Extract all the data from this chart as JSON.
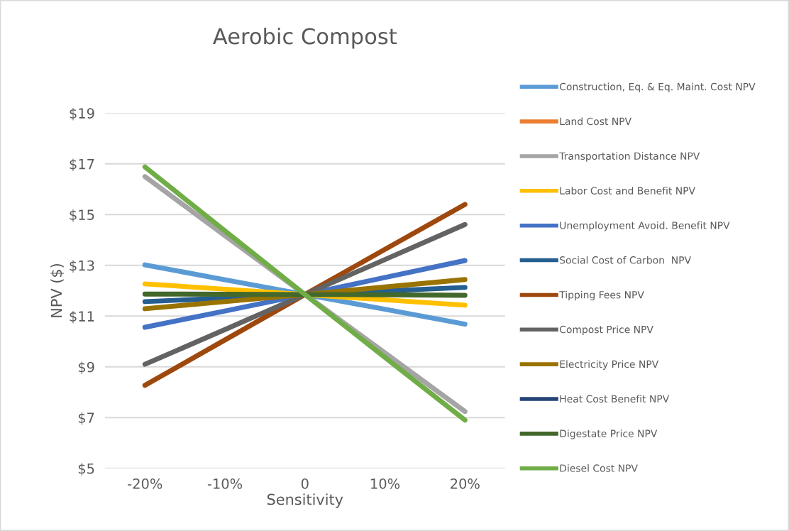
{
  "chart_data": {
    "type": "line",
    "title": "Aerobic Compost",
    "xlabel": "Sensitivity",
    "ylabel": "NPV ($)",
    "categories": [
      "-20%",
      "-10%",
      "0",
      "10%",
      "20%"
    ],
    "series": [
      {
        "name": "Construction, Eq. & Eq. Maint. Cost NPV",
        "color": "#5b9bd5",
        "values": [
          13.02,
          12.43,
          11.85,
          11.27,
          10.68
        ]
      },
      {
        "name": "Land Cost NPV",
        "color": "#ed7d31",
        "values": [
          null,
          null,
          null,
          null,
          null
        ]
      },
      {
        "name": "Transportation Distance NPV",
        "color": "#a5a5a5",
        "values": [
          16.5,
          14.17,
          11.85,
          9.55,
          7.24
        ]
      },
      {
        "name": "Labor Cost and Benefit NPV",
        "color": "#ffc000",
        "values": [
          12.27,
          12.06,
          11.85,
          11.64,
          11.43
        ]
      },
      {
        "name": "Unemployment Avoid. Benefit NPV",
        "color": "#4472c4",
        "values": [
          10.56,
          11.2,
          11.85,
          12.52,
          13.19
        ]
      },
      {
        "name": "Social Cost of Carbon  NPV",
        "color": "#255e91",
        "values": [
          11.57,
          11.71,
          11.85,
          11.99,
          12.13
        ]
      },
      {
        "name": "Tipping Fees NPV",
        "color": "#9e480e",
        "values": [
          8.27,
          10.06,
          11.85,
          13.63,
          15.4
        ]
      },
      {
        "name": "Compost Price NPV",
        "color": "#636363",
        "values": [
          9.1,
          10.47,
          11.85,
          13.23,
          14.61
        ]
      },
      {
        "name": "Electricity Price NPV",
        "color": "#997300",
        "values": [
          11.29,
          11.57,
          11.85,
          12.15,
          12.44
        ]
      },
      {
        "name": "Heat Cost Benefit NPV",
        "color": "#264478",
        "values": [
          null,
          null,
          null,
          null,
          null
        ]
      },
      {
        "name": "Digestate Price NPV",
        "color": "#43682b",
        "values": [
          11.87,
          11.86,
          11.85,
          11.84,
          11.82
        ]
      },
      {
        "name": "Diesel Cost NPV",
        "color": "#70ad47",
        "values": [
          16.88,
          14.36,
          11.85,
          9.37,
          6.9
        ]
      }
    ],
    "ylim": [
      5,
      19
    ],
    "yticks": [
      {
        "value": 5,
        "label": "$5"
      },
      {
        "value": 7,
        "label": "$7"
      },
      {
        "value": 9,
        "label": "$9"
      },
      {
        "value": 11,
        "label": "$11"
      },
      {
        "value": 13,
        "label": "$13"
      },
      {
        "value": 15,
        "label": "$15"
      },
      {
        "value": 17,
        "label": "$17"
      },
      {
        "value": 19,
        "label": "$19"
      }
    ],
    "grid": "y",
    "legend": "right",
    "marker": "none",
    "line_style": "solid"
  }
}
